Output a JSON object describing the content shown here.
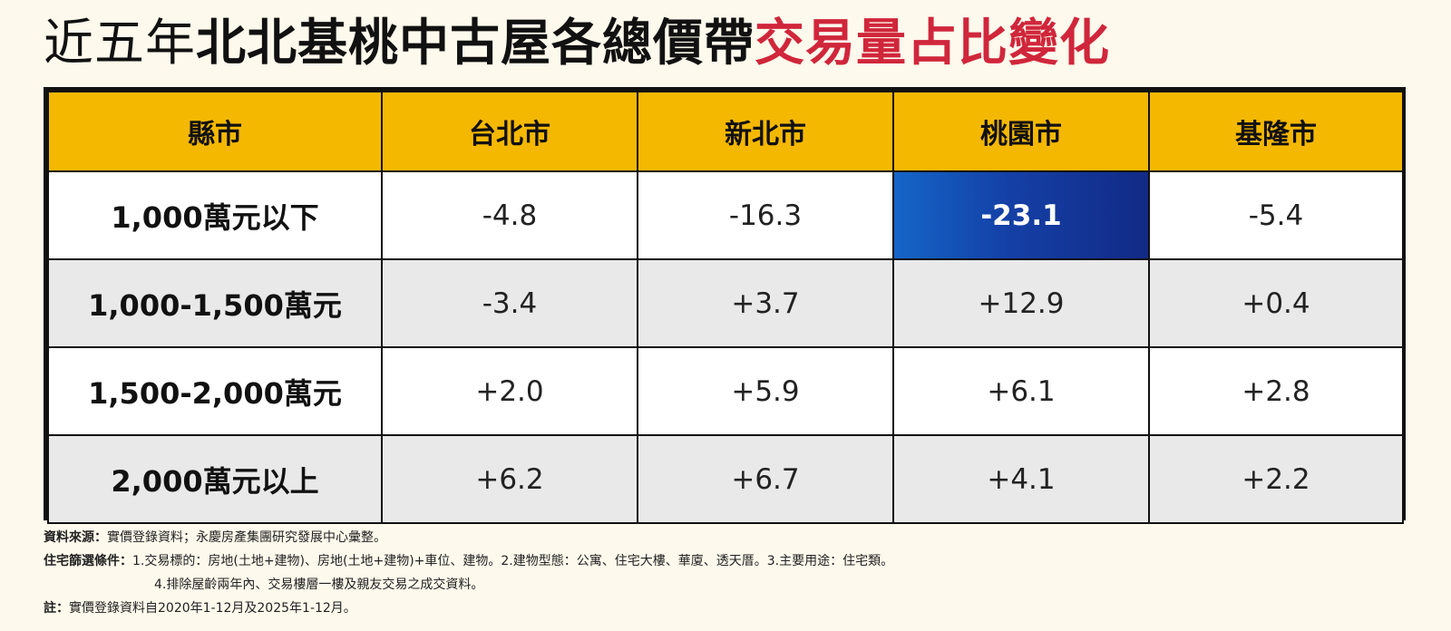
{
  "title": {
    "part1": "近五年",
    "part2": "北北基桃中古屋各總價帶",
    "part3": "交易量占比變化"
  },
  "chart_data": {
    "type": "table",
    "columns": [
      "縣市",
      "台北市",
      "新北市",
      "桃園市",
      "基隆市"
    ],
    "rows": [
      {
        "label": "1,000萬元以下",
        "values": [
          "-4.8",
          "-16.3",
          "-23.1",
          "-5.4"
        ]
      },
      {
        "label": "1,000-1,500萬元",
        "values": [
          "-3.4",
          "+3.7",
          "+12.9",
          "+0.4"
        ]
      },
      {
        "label": "1,500-2,000萬元",
        "values": [
          "+2.0",
          "+5.9",
          "+6.1",
          "+2.8"
        ]
      },
      {
        "label": "2,000萬元以上",
        "values": [
          "+6.2",
          "+6.7",
          "+4.1",
          "+2.2"
        ]
      }
    ],
    "highlight": {
      "row": 0,
      "col": 2,
      "color": "#1440a6"
    }
  },
  "colors": {
    "header_bg": "#f5b800",
    "title_accent": "#d0263b",
    "row_alt_bg": "#e9e9e9",
    "page_bg": "#fdf9ec"
  },
  "notes": {
    "source_label": "資料來源：",
    "source_text": "實價登錄資料；永慶房產集團研究發展中心彙整。",
    "filter_label": "住宅篩選條件：",
    "filter_text_1": "1.交易標的：房地(土地+建物)、房地(土地+建物)+車位、建物。2.建物型態：公寓、住宅大樓、華廈、透天厝。3.主要用途：住宅類。",
    "filter_text_2": "4.排除屋齡兩年內、交易樓層一樓及親友交易之成交資料。",
    "note_label": "註：",
    "note_text": "實價登錄資料自2020年1-12月及2025年1-12月。"
  }
}
